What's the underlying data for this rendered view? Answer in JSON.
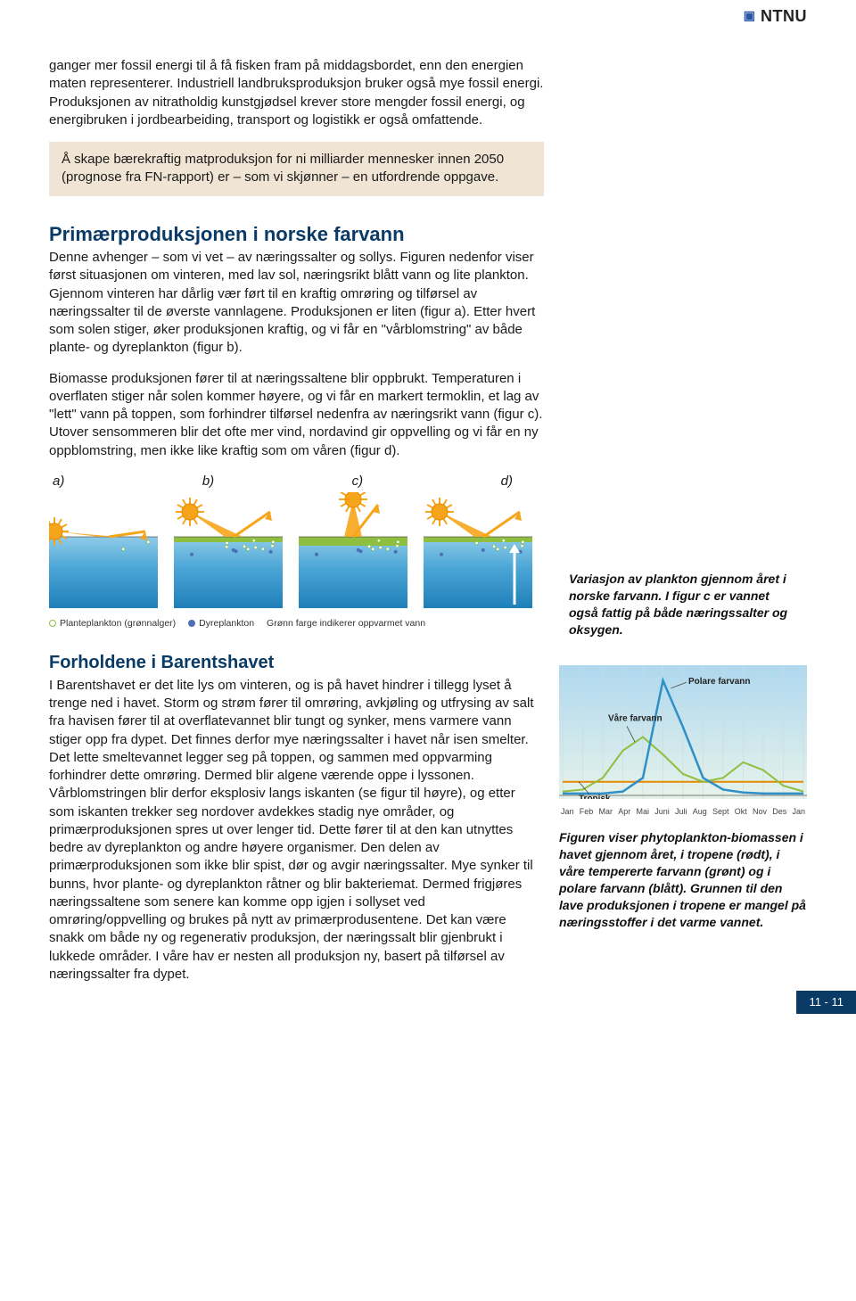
{
  "brand": {
    "logo_text": "NTNU"
  },
  "intro": {
    "para1": "ganger mer fossil energi til å få fisken fram på middagsbordet, enn den energien maten representerer. Industriell landbruksproduksjon bruker også mye fossil energi. Produksjonen av nitratholdig kunstgjødsel krever store mengder fossil energi, og energibruken i jordbearbeiding, transport og logistikk er også omfattende.",
    "highlight": "Å skape bærekraftig matproduksjon for ni milliarder mennesker innen 2050 (prognose fra FN-rapport) er – som vi skjønner – en utfordrende oppgave."
  },
  "section1": {
    "heading": "Primærproduksjonen i norske farvann",
    "para1": "Denne avhenger – som vi vet – av næringssalter og sollys. Figuren nedenfor viser først situasjonen om vinteren, med lav sol, næringsrikt blått vann og lite plankton. Gjennom vinteren har dårlig vær ført til en kraftig omrøring og tilførsel av næringssalter til de øverste vannlagene. Produksjonen er liten (figur a). Etter hvert som solen stiger, øker produksjonen kraftig, og vi får en \"vårblomstring\" av både plante- og dyreplankton (figur b).",
    "para2": "Biomasse produksjonen fører til at næringssaltene blir oppbrukt. Temperaturen i overflaten stiger når solen kommer høyere, og vi får en markert termoklin, et lag av \"lett\" vann på toppen, som forhindrer tilførsel nedenfra av næringsrikt vann (figur c). Utover sensommeren blir det ofte mer vind, nordavind gir oppvelling og vi får en ny oppblomstring, men ikke like kraftig som om våren (figur d)."
  },
  "fig_panels": {
    "labels": {
      "a": "a)",
      "b": "b)",
      "c": "c)",
      "d": "d)"
    },
    "colors": {
      "sun_fill": "#f6a51b",
      "sun_stroke": "#e58a00",
      "ray": "#f6a51b",
      "surface_green": "#8fbf3f",
      "water_top": "#8ecbe8",
      "water_mid": "#4aa5d6",
      "water_deep": "#1f7fb8",
      "phyto": "#ffffff",
      "zoo": "#4a6fb3"
    },
    "legend": {
      "phyto": "Planteplankton (grønnalger)",
      "zoo": "Dyreplankton",
      "green": "Grønn farge indikerer oppvarmet vann"
    },
    "panels": [
      {
        "id": "a",
        "sun_elev": "low",
        "green_depth": 0,
        "phyto": 2,
        "zoo": 0
      },
      {
        "id": "b",
        "sun_elev": "mid",
        "green_depth": 6,
        "phyto": 9,
        "zoo": 4
      },
      {
        "id": "c",
        "sun_elev": "high",
        "green_depth": 10,
        "phyto": 7,
        "zoo": 4
      },
      {
        "id": "d",
        "sun_elev": "mid",
        "green_depth": 6,
        "phyto": 8,
        "zoo": 3,
        "upwelling": true
      }
    ]
  },
  "side1": {
    "caption": "Variasjon av plankton gjennom året i norske farvann. I figur c er vannet også fattig på både næringssalter og oksygen."
  },
  "section2": {
    "heading": "Forholdene i Barentshavet",
    "para1": "I Barentshavet er det lite lys om vinteren, og is på havet hindrer i tillegg lyset å trenge ned i havet. Storm og strøm fører til omrøring, avkjøling og utfrysing av salt fra havisen fører til at overflatevannet blir tungt og synker, mens varmere vann stiger opp fra dypet. Det finnes derfor mye næringssalter i havet når isen smelter. Det lette smeltevannet legger seg på toppen, og sammen med oppvarming forhindrer dette omrøring. Dermed blir algene værende oppe i lyssonen. Vårblomstringen blir derfor eksplosiv langs iskanten (se figur til høyre), og etter som iskanten trekker seg nordover avdekkes stadig nye områder, og primærproduksjonen spres ut over lenger tid. Dette fører til at den kan utnyttes bedre av dyreplankton og andre høyere organismer. Den delen av primærproduksjonen som ikke blir spist, dør og avgir næringssalter. Mye synker til bunns, hvor plante- og dyreplankton råtner og blir bakteriemat. Dermed frigjøres næringssaltene som senere kan komme opp igjen i sollyset ved omrøring/oppvelling og brukes på nytt av primærprodusentene. Det kan være snakk om både ny og regenerativ produksjon, der næringssalt blir gjenbrukt i lukkede områder. I våre hav er nesten all produksjon ny, basert på tilførsel av næringssalter fra dypet."
  },
  "chart": {
    "bg_top": "#aed8ef",
    "bg_bottom": "#e7f3ea",
    "axis_color": "#7a7a7a",
    "grid_color": "#ced9df",
    "months": [
      "Jan",
      "Feb",
      "Mar",
      "Apr",
      "Mai",
      "Juni",
      "Juli",
      "Aug",
      "Sept",
      "Okt",
      "Nov",
      "Des",
      "Jan"
    ],
    "series": {
      "tropisk": {
        "label": "Tropisk",
        "color": "#e58a00",
        "width": 2,
        "y": [
          14,
          14,
          14,
          14,
          14,
          14,
          14,
          14,
          14,
          14,
          14,
          14,
          14
        ]
      },
      "vaare": {
        "label": "Våre farvann",
        "color": "#8fbf3f",
        "width": 2,
        "y": [
          4,
          6,
          18,
          46,
          60,
          42,
          22,
          14,
          18,
          34,
          26,
          10,
          4
        ]
      },
      "polar": {
        "label": "Polare farvann",
        "color": "#2f8fc7",
        "width": 2.5,
        "y": [
          2,
          2,
          2,
          4,
          18,
          118,
          70,
          18,
          6,
          3,
          2,
          2,
          2
        ]
      }
    },
    "caption": "Figuren viser phytoplankton-biomassen i havet gjennom året, i tropene (rødt), i våre tempererte farvann (grønt) og i polare farvann (blått). Grunnen til den lave produksjonen i tropene er mangel på næringsstoffer i det varme vannet."
  },
  "pagenum": "11 - 11"
}
